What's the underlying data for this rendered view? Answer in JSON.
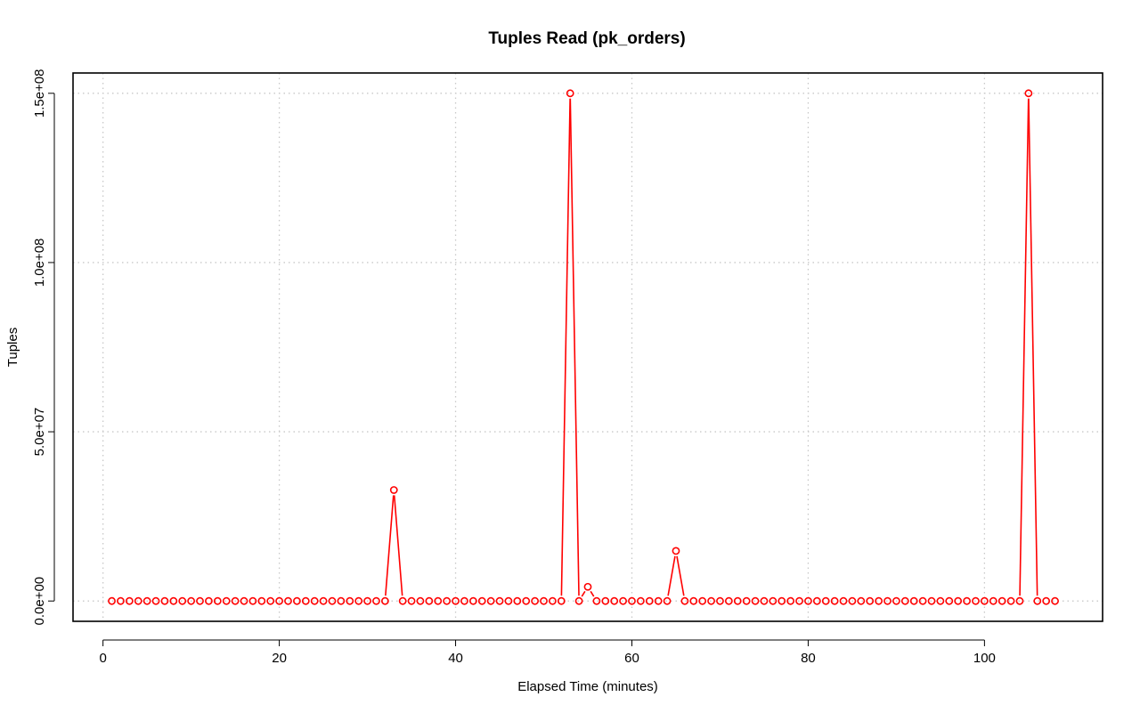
{
  "chart_data": {
    "type": "line",
    "title": "Tuples Read (pk_orders)",
    "xlabel": "Elapsed Time (minutes)",
    "ylabel": "Tuples",
    "xlim": [
      -3.4,
      113.4
    ],
    "ylim": [
      -6000000,
      156000000
    ],
    "xticks": [
      0,
      20,
      40,
      60,
      80,
      100
    ],
    "xtick_labels": [
      "0",
      "20",
      "40",
      "60",
      "80",
      "100"
    ],
    "yticks": [
      0,
      50000000,
      100000000,
      150000000
    ],
    "ytick_labels": [
      "0.0e+00",
      "5.0e+07",
      "1.0e+08",
      "1.5e+08"
    ],
    "grid": true,
    "color": "#ff0000",
    "marker": "open-circle",
    "series": [
      {
        "x": [
          1,
          2,
          3,
          4,
          5,
          6,
          7,
          8,
          9,
          10,
          11,
          12,
          13,
          14,
          15,
          16,
          17,
          18,
          19,
          20,
          21,
          22,
          23,
          24,
          25,
          26,
          27,
          28,
          29,
          30,
          31,
          32,
          33,
          34,
          35,
          36,
          37,
          38,
          39,
          40,
          41,
          42,
          43,
          44,
          45,
          46,
          47,
          48,
          49,
          50,
          51,
          52,
          53,
          54,
          55,
          56,
          57,
          58,
          59,
          60,
          61,
          62,
          63,
          64,
          65,
          66,
          67,
          68,
          69,
          70,
          71,
          72,
          73,
          74,
          75,
          76,
          77,
          78,
          79,
          80,
          81,
          82,
          83,
          84,
          85,
          86,
          87,
          88,
          89,
          90,
          91,
          92,
          93,
          94,
          95,
          96,
          97,
          98,
          99,
          100,
          101,
          102,
          103,
          104,
          105,
          106,
          107,
          108
        ],
        "y": [
          0,
          0,
          0,
          0,
          0,
          0,
          0,
          0,
          0,
          0,
          0,
          0,
          0,
          0,
          0,
          0,
          0,
          0,
          0,
          0,
          0,
          0,
          0,
          0,
          0,
          0,
          0,
          0,
          0,
          0,
          0,
          0,
          32800000,
          0,
          0,
          0,
          0,
          0,
          0,
          0,
          0,
          0,
          0,
          0,
          0,
          0,
          0,
          0,
          0,
          0,
          0,
          0,
          150000000,
          0,
          4200000,
          0,
          0,
          0,
          0,
          0,
          0,
          0,
          0,
          0,
          14800000,
          0,
          0,
          0,
          0,
          0,
          0,
          0,
          0,
          0,
          0,
          0,
          0,
          0,
          0,
          0,
          0,
          0,
          0,
          0,
          0,
          0,
          0,
          0,
          0,
          0,
          0,
          0,
          0,
          0,
          0,
          0,
          0,
          0,
          0,
          0,
          0,
          0,
          0,
          0,
          150000000,
          0,
          0,
          0
        ]
      }
    ]
  }
}
